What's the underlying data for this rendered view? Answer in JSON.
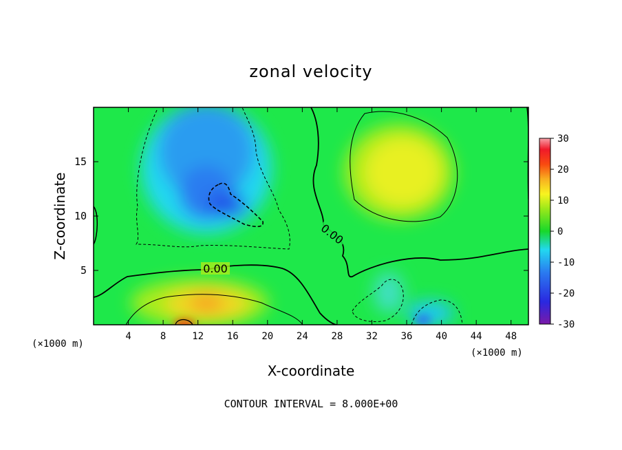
{
  "chart_data": {
    "type": "heatmap",
    "title": "zonal velocity",
    "xlabel": "X-coordinate",
    "ylabel": "Z-coordinate",
    "x_unit_label_left": "(×1000 m)",
    "x_unit_label_right": "(×1000 m)",
    "footer": "CONTOUR INTERVAL = 8.000E+00",
    "xlim": [
      0,
      50
    ],
    "ylim": [
      0,
      20
    ],
    "x_ticks": [
      4,
      8,
      12,
      16,
      20,
      24,
      28,
      32,
      36,
      40,
      44,
      48
    ],
    "y_ticks": [
      5,
      10,
      15
    ],
    "colorbar": {
      "range": [
        -30,
        30
      ],
      "ticks": [
        30,
        20,
        10,
        0,
        -10,
        -20,
        -30
      ]
    },
    "contour_interval": 8.0,
    "contour_labels": [
      "0.00",
      "0.00"
    ],
    "features": [
      {
        "x": 14,
        "z": 11,
        "value": -20
      },
      {
        "x": 14,
        "z": 17,
        "value": -12
      },
      {
        "x": 35,
        "z": 14,
        "value": 11
      },
      {
        "x": 14,
        "z": 2,
        "value": 12
      },
      {
        "x": 10,
        "z": 0.2,
        "value": 18
      },
      {
        "x": 38,
        "z": 1,
        "value": -13
      },
      {
        "x": 34,
        "z": 3,
        "value": -8
      }
    ]
  }
}
